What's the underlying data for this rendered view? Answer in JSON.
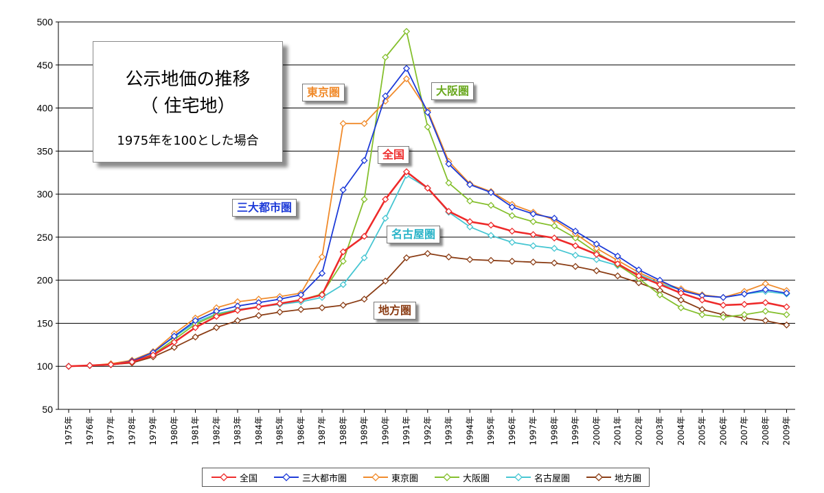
{
  "title_box": {
    "line1": "公示地価の推移",
    "line2": "（ 住宅地）",
    "line3": "1975年を100とした場合"
  },
  "colors": {
    "全国": "#ee2a2a",
    "三大都市圏": "#1c3ad8",
    "東京圏": "#f08a2a",
    "大阪圏": "#84bf2c",
    "名古屋圏": "#46c6d2",
    "地方圏": "#8a3c14"
  },
  "labels": {
    "tokyo": "東京圏",
    "osaka": "大阪圏",
    "zenkoku": "全国",
    "sandai": "三大都市圏",
    "nagoya": "名古屋圏",
    "chiho": "地方圏"
  },
  "chart_data": {
    "type": "line",
    "title": "公示地価の推移（住宅地）1975年を100とした場合",
    "ylim": [
      50,
      500
    ],
    "yticks": [
      50,
      100,
      150,
      200,
      250,
      300,
      350,
      400,
      450,
      500
    ],
    "grid": true,
    "legend_position": "bottom",
    "categories": [
      "1975年",
      "1976年",
      "1977年",
      "1978年",
      "1979年",
      "1980年",
      "1981年",
      "1982年",
      "1983年",
      "1984年",
      "1985年",
      "1986年",
      "1987年",
      "1988年",
      "1989年",
      "1990年",
      "1991年",
      "1992年",
      "1993年",
      "1994年",
      "1995年",
      "1996年",
      "1997年",
      "1998年",
      "1999年",
      "2000年",
      "2001年",
      "2002年",
      "2003年",
      "2004年",
      "2005年",
      "2006年",
      "2007年",
      "2008年",
      "2009年"
    ],
    "series": [
      {
        "name": "全国",
        "values": [
          100,
          101,
          102,
          105,
          113,
          128,
          145,
          158,
          165,
          169,
          173,
          177,
          183,
          233,
          251,
          294,
          326,
          307,
          280,
          268,
          264,
          257,
          253,
          249,
          240,
          230,
          219,
          205,
          195,
          185,
          177,
          171,
          172,
          174,
          169
        ]
      },
      {
        "name": "三大都市圏",
        "values": [
          100,
          101,
          102,
          106,
          116,
          135,
          153,
          164,
          170,
          174,
          178,
          183,
          208,
          305,
          339,
          414,
          446,
          395,
          335,
          311,
          302,
          285,
          277,
          272,
          257,
          242,
          228,
          212,
          200,
          188,
          182,
          180,
          184,
          189,
          185
        ]
      },
      {
        "name": "東京圏",
        "values": [
          100,
          101,
          103,
          107,
          117,
          138,
          156,
          168,
          175,
          178,
          181,
          185,
          227,
          382,
          382,
          408,
          434,
          397,
          338,
          312,
          303,
          288,
          279,
          270,
          254,
          237,
          223,
          209,
          198,
          190,
          183,
          180,
          187,
          196,
          188
        ]
      },
      {
        "name": "大阪圏",
        "values": [
          100,
          101,
          102,
          105,
          114,
          131,
          149,
          160,
          165,
          169,
          173,
          177,
          184,
          222,
          294,
          459,
          489,
          378,
          313,
          292,
          287,
          275,
          268,
          263,
          249,
          232,
          218,
          202,
          183,
          168,
          160,
          157,
          160,
          164,
          160
        ]
      },
      {
        "name": "名古屋圏",
        "values": [
          100,
          101,
          102,
          107,
          117,
          134,
          151,
          161,
          166,
          169,
          172,
          175,
          180,
          195,
          226,
          272,
          322,
          307,
          279,
          262,
          252,
          244,
          240,
          237,
          229,
          224,
          217,
          207,
          196,
          189,
          183,
          180,
          184,
          187,
          184
        ]
      },
      {
        "name": "地方圏",
        "values": [
          100,
          101,
          102,
          104,
          111,
          122,
          134,
          145,
          153,
          159,
          163,
          166,
          168,
          171,
          178,
          199,
          226,
          231,
          227,
          224,
          223,
          222,
          221,
          220,
          216,
          211,
          205,
          197,
          188,
          177,
          166,
          160,
          156,
          153,
          148
        ]
      }
    ]
  }
}
